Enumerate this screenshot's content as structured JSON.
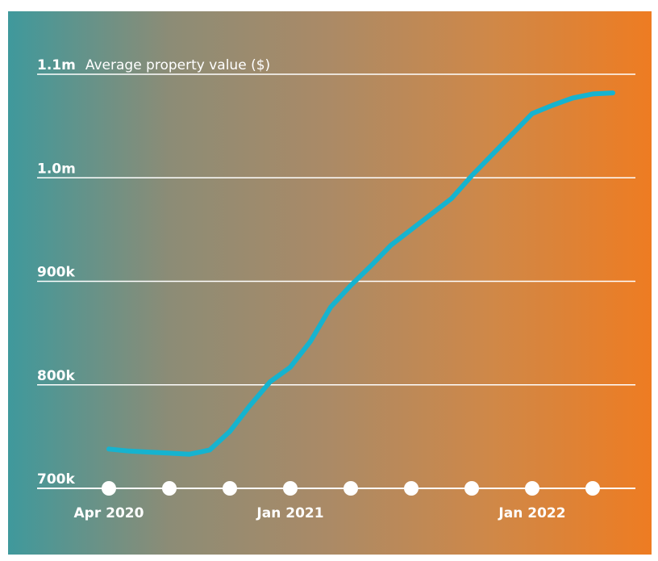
{
  "chart_data": {
    "type": "line",
    "title": "Average property value ($)",
    "xlabel": "",
    "ylabel": "",
    "ylim": [
      700000,
      1100000
    ],
    "y_ticks": [
      {
        "value": 700000,
        "label": "700k"
      },
      {
        "value": 800000,
        "label": "800k"
      },
      {
        "value": 900000,
        "label": "900k"
      },
      {
        "value": 1000000,
        "label": "1.0m"
      },
      {
        "value": 1100000,
        "label": "1.1m"
      }
    ],
    "x_markers": [
      {
        "date": "2020-04",
        "label": "Apr 2020"
      },
      {
        "date": "2020-07",
        "label": ""
      },
      {
        "date": "2020-10",
        "label": ""
      },
      {
        "date": "2021-01",
        "label": "Jan 2021"
      },
      {
        "date": "2021-04",
        "label": ""
      },
      {
        "date": "2021-07",
        "label": ""
      },
      {
        "date": "2021-10",
        "label": ""
      },
      {
        "date": "2022-01",
        "label": "Jan 2022"
      },
      {
        "date": "2022-04",
        "label": ""
      }
    ],
    "series": [
      {
        "name": "",
        "color": "#16b3cf",
        "points": [
          {
            "x": "2020-04",
            "y": 738000
          },
          {
            "x": "2020-05",
            "y": 736000
          },
          {
            "x": "2020-06",
            "y": 735000
          },
          {
            "x": "2020-07",
            "y": 734000
          },
          {
            "x": "2020-08",
            "y": 733000
          },
          {
            "x": "2020-09",
            "y": 737000
          },
          {
            "x": "2020-10",
            "y": 755000
          },
          {
            "x": "2020-11",
            "y": 780000
          },
          {
            "x": "2020-12",
            "y": 803000
          },
          {
            "x": "2021-01",
            "y": 817000
          },
          {
            "x": "2021-02",
            "y": 842000
          },
          {
            "x": "2021-03",
            "y": 875000
          },
          {
            "x": "2021-04",
            "y": 896000
          },
          {
            "x": "2021-05",
            "y": 915000
          },
          {
            "x": "2021-06",
            "y": 935000
          },
          {
            "x": "2021-07",
            "y": 950000
          },
          {
            "x": "2021-08",
            "y": 965000
          },
          {
            "x": "2021-09",
            "y": 980000
          },
          {
            "x": "2021-10",
            "y": 1002000
          },
          {
            "x": "2021-11",
            "y": 1022000
          },
          {
            "x": "2021-12",
            "y": 1042000
          },
          {
            "x": "2022-01",
            "y": 1062000
          },
          {
            "x": "2022-02",
            "y": 1070000
          },
          {
            "x": "2022-03",
            "y": 1077000
          },
          {
            "x": "2022-04",
            "y": 1081000
          },
          {
            "x": "2022-05",
            "y": 1082000
          }
        ]
      }
    ],
    "grid": true,
    "background": {
      "left": "#3f999c",
      "right": "#ee7c22"
    },
    "gridline_color": "#ffffff",
    "marker_color": "#ffffff"
  }
}
